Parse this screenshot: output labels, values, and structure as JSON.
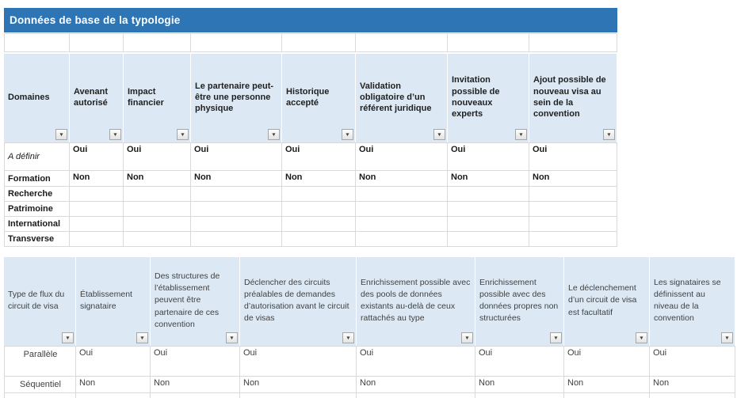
{
  "banner": {
    "title": "Données de base de la typologie"
  },
  "colors": {
    "banner_bg": "#2E75B6",
    "banner_text": "#FFFFFF",
    "header_bg": "#DCE9F5",
    "grid_border": "#D9D9D9",
    "table2_text": "#3F3F3F"
  },
  "icons": {
    "filter_dropdown": "▼"
  },
  "table1": {
    "columns": [
      "Domaines",
      "Avenant autorisé",
      "Impact financier",
      "Le partenaire peut-être une personne physique",
      "Historique accepté",
      "Validation obligatoire d’un référent juridique",
      "Invitation possible de nouveaux experts",
      "Ajout possible de nouveau visa au sein de la convention"
    ],
    "rows": [
      {
        "label": "A définir",
        "italic": true,
        "values": [
          "Oui",
          "Oui",
          "Oui",
          "Oui",
          "Oui",
          "Oui",
          "Oui"
        ]
      },
      {
        "label": "Formation",
        "values": [
          "Non",
          "Non",
          "Non",
          "Non",
          "Non",
          "Non",
          "Non"
        ]
      },
      {
        "label": "Recherche",
        "values": [
          "",
          "",
          "",
          "",
          "",
          "",
          ""
        ]
      },
      {
        "label": "Patrimoine",
        "values": [
          "",
          "",
          "",
          "",
          "",
          "",
          ""
        ]
      },
      {
        "label": "International",
        "values": [
          "",
          "",
          "",
          "",
          "",
          "",
          ""
        ]
      },
      {
        "label": "Transverse",
        "values": [
          "",
          "",
          "",
          "",
          "",
          "",
          ""
        ]
      }
    ]
  },
  "table2": {
    "columns": [
      "Type de flux du circuit de visa",
      "Établissement signataire",
      "Des structures de l’établissement peuvent être partenaire de ces convention",
      "Déclencher des circuits préalables de demandes d’autorisation avant le circuit de visas",
      "Enrichissement possible avec des pools de données existants au-delà de ceux rattachés au type",
      "Enrichissement possible avec des données propres non structurées",
      "Le déclenchement d’un circuit de visa est facultatif",
      "Les signataires se définissent au niveau de la convention"
    ],
    "rows": [
      {
        "label": "Parallèle",
        "values": [
          "Oui",
          "Oui",
          "Oui",
          "Oui",
          "Oui",
          "Oui",
          "Oui"
        ]
      },
      {
        "label": "Séquentiel",
        "values": [
          "Non",
          "Non",
          "Non",
          "Non",
          "Non",
          "Non",
          "Non"
        ]
      }
    ]
  }
}
